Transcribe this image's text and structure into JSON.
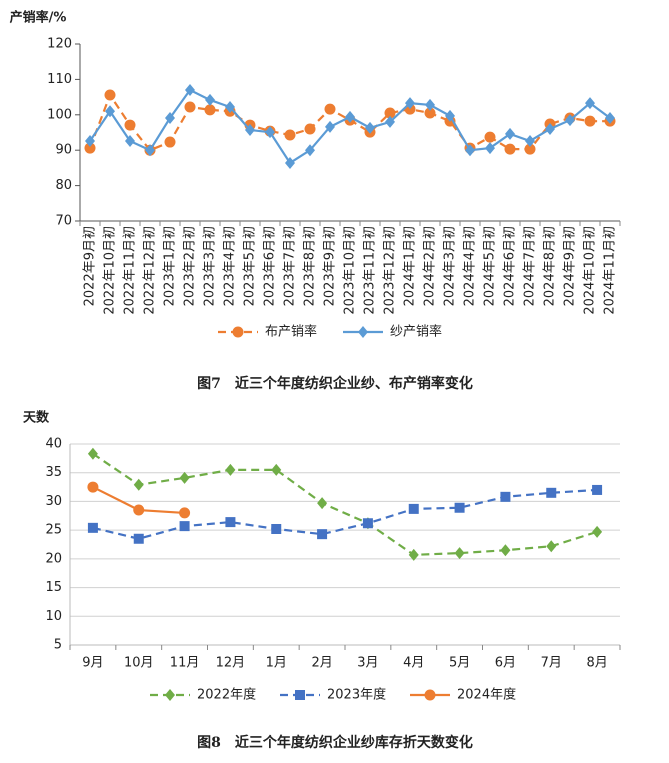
{
  "chart_data": [
    {
      "type": "line",
      "ylabel": "产销率/%",
      "caption": "图7　近三个年度纺织企业纱、布产销率变化",
      "categories": [
        "2022年9月初",
        "2022年10月初",
        "2022年11月初",
        "2022年12月初",
        "2023年1月初",
        "2023年2月初",
        "2023年3月初",
        "2023年4月初",
        "2023年5月初",
        "2023年6月初",
        "2023年7月初",
        "2023年8月初",
        "2023年9月初",
        "2023年10月初",
        "2023年11月初",
        "2023年12月初",
        "2024年1月初",
        "2024年2月初",
        "2024年3月初",
        "2024年4月初",
        "2024年5月初",
        "2024年6月初",
        "2024年7月初",
        "2024年8月初",
        "2024年9月初",
        "2024年10月初",
        "2024年11月初"
      ],
      "series": [
        {
          "name": "布产销率",
          "color": "#ed7d31",
          "dashed": true,
          "marker": "circle",
          "values": [
            90.6,
            105.6,
            97.1,
            90,
            92.3,
            102.2,
            101.4,
            101,
            97.1,
            95.4,
            94.3,
            96,
            101.6,
            98.5,
            95.1,
            100.5,
            101.6,
            100.5,
            98.2,
            90.6,
            93.7,
            90.3,
            90.3,
            97.4,
            99.1,
            98.2,
            98.2
          ]
        },
        {
          "name": "纱产销率",
          "color": "#5b9bd5",
          "dashed": false,
          "marker": "diamond",
          "values": [
            92.6,
            101,
            92.6,
            90,
            99.1,
            107,
            104.2,
            102.2,
            95.7,
            95.1,
            86.4,
            90,
            96.6,
            99.4,
            96.3,
            98,
            103.3,
            102.8,
            99.7,
            90,
            90.6,
            94.6,
            92.6,
            96,
            98.5,
            103.3,
            99.1
          ]
        }
      ],
      "ylim": [
        70,
        120
      ],
      "yticks": [
        70,
        80,
        90,
        100,
        110,
        120
      ],
      "grid": false,
      "legend": "bottom"
    },
    {
      "type": "line",
      "ylabel": "天数",
      "caption": "图8　近三个年度纺织企业纱库存折天数变化",
      "categories": [
        "9月",
        "10月",
        "11月",
        "12月",
        "1月",
        "2月",
        "3月",
        "4月",
        "5月",
        "6月",
        "7月",
        "8月"
      ],
      "series": [
        {
          "name": "2022年度",
          "color": "#70ad47",
          "dashed": true,
          "marker": "diamond",
          "values": [
            38.3,
            32.9,
            34.1,
            35.5,
            35.5,
            29.7,
            26.2,
            20.7,
            21,
            21.5,
            22.2,
            24.7
          ]
        },
        {
          "name": "2023年度",
          "color": "#4472c4",
          "dashed": true,
          "marker": "square",
          "values": [
            25.4,
            23.5,
            25.7,
            26.4,
            25.2,
            24.3,
            26.2,
            28.7,
            28.9,
            30.8,
            31.5,
            32
          ]
        },
        {
          "name": "2024年度",
          "color": "#ed7d31",
          "dashed": false,
          "marker": "circle",
          "values": [
            32.5,
            28.5,
            28.0,
            null,
            null,
            null,
            null,
            null,
            null,
            null,
            null,
            null
          ]
        }
      ],
      "ylim": [
        5,
        40
      ],
      "yticks": [
        5,
        10,
        15,
        20,
        25,
        30,
        35,
        40
      ],
      "grid": true,
      "legend": "bottom"
    }
  ]
}
